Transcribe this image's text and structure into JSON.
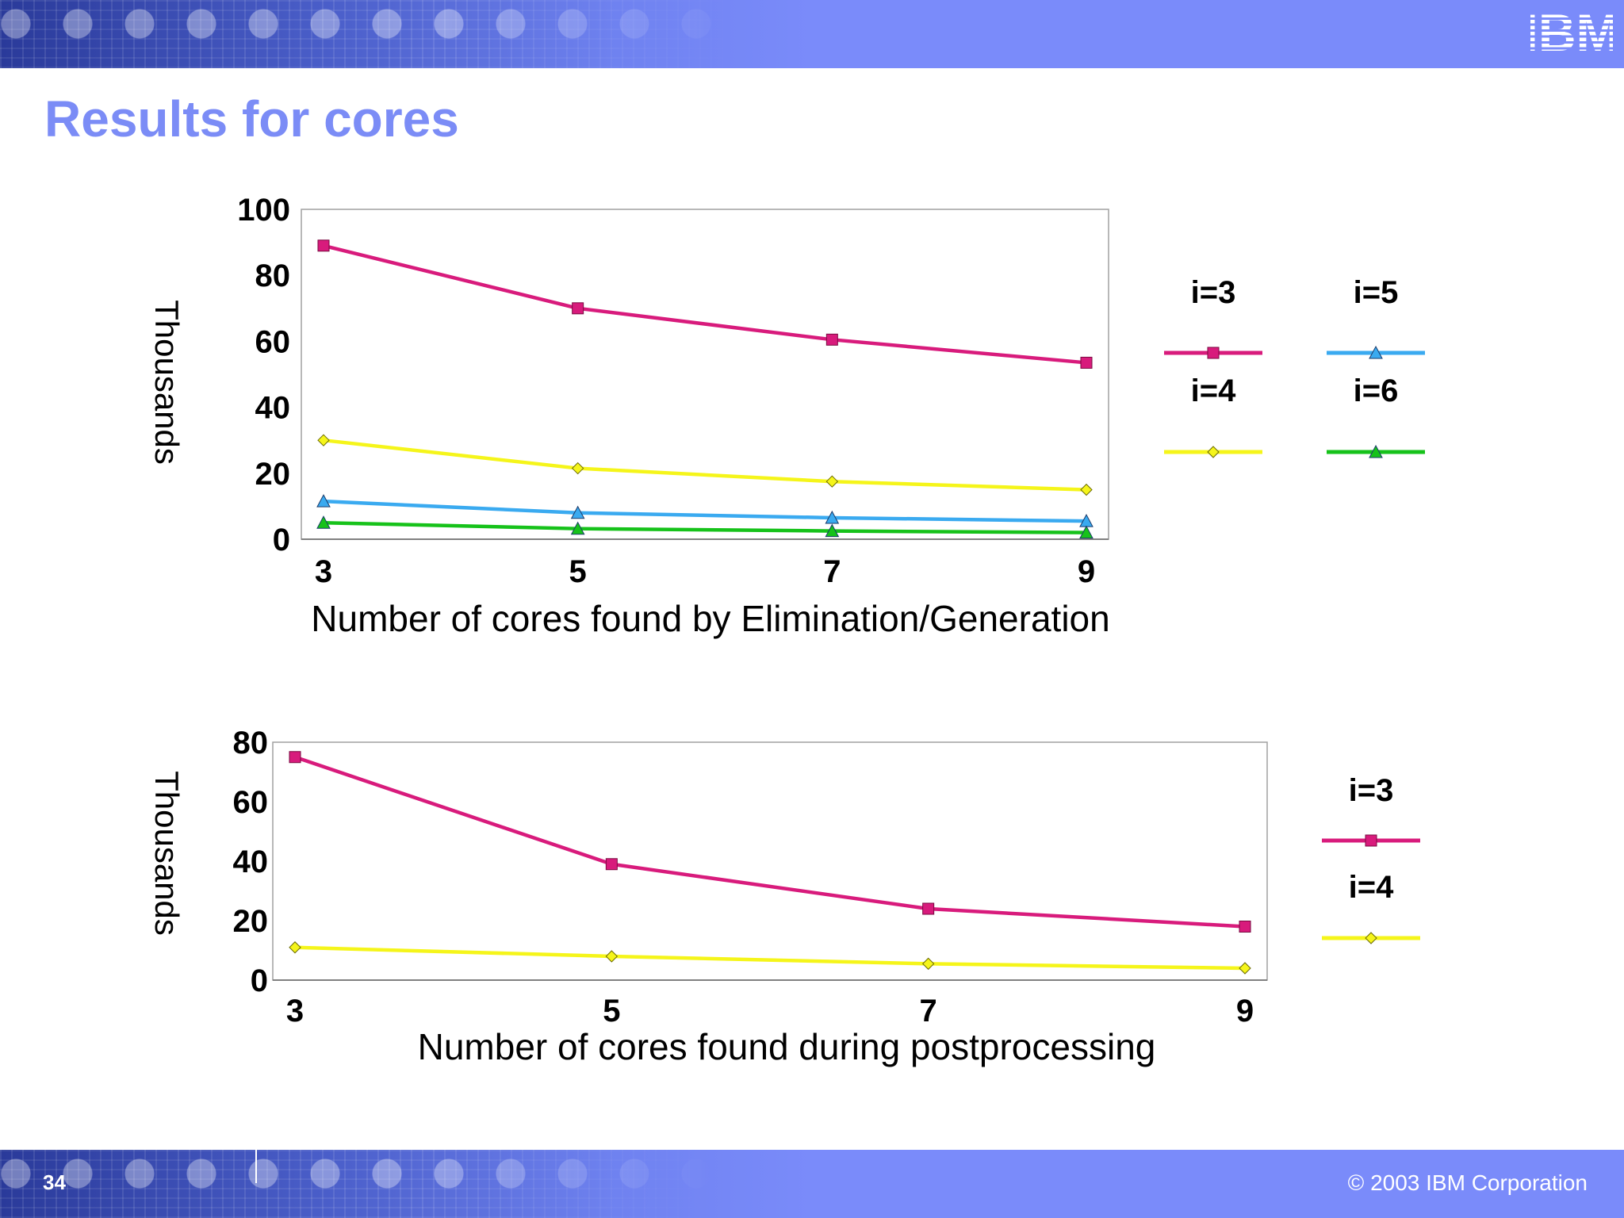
{
  "slide": {
    "title": "Results for cores",
    "page_number": "34",
    "copyright": "© 2003 IBM Corporation",
    "logo_text": "IBM"
  },
  "colors": {
    "banner": "#7a8bfa",
    "title": "#7b8cf6",
    "i3": "#d81b7c",
    "i4": "#f5f51a",
    "i5": "#3aaaf0",
    "i6": "#16c21a"
  },
  "chart_data": [
    {
      "type": "line",
      "title": "",
      "xlabel": "Number of cores found by Elimination/Generation",
      "ylabel": "Thousands",
      "x": [
        3,
        5,
        7,
        9
      ],
      "x_ticks": [
        "3",
        "5",
        "7",
        "9"
      ],
      "y_ticks": [
        "0",
        "20",
        "40",
        "60",
        "80",
        "100"
      ],
      "ylim": [
        0,
        100
      ],
      "grid": false,
      "legend_position": "right",
      "series": [
        {
          "name": "i=3",
          "values": [
            89,
            70,
            60.5,
            53.5
          ],
          "color": "#d81b7c",
          "marker": "square"
        },
        {
          "name": "i=5",
          "values": [
            11.5,
            8,
            6.5,
            5.5
          ],
          "color": "#3aaaf0",
          "marker": "triangle"
        },
        {
          "name": "i=4",
          "values": [
            30,
            21.5,
            17.5,
            15
          ],
          "color": "#f5f51a",
          "marker": "diamond"
        },
        {
          "name": "i=6",
          "values": [
            5,
            3.2,
            2.5,
            2
          ],
          "color": "#16c21a",
          "marker": "triangle"
        }
      ]
    },
    {
      "type": "line",
      "title": "",
      "xlabel": "Number of cores found during postprocessing",
      "ylabel": "Thousands",
      "x": [
        3,
        5,
        7,
        9
      ],
      "x_ticks": [
        "3",
        "5",
        "7",
        "9"
      ],
      "y_ticks": [
        "0",
        "20",
        "40",
        "60",
        "80"
      ],
      "ylim": [
        0,
        80
      ],
      "grid": false,
      "legend_position": "right",
      "series": [
        {
          "name": "i=3",
          "values": [
            75,
            39,
            24,
            18
          ],
          "color": "#d81b7c",
          "marker": "square"
        },
        {
          "name": "i=4",
          "values": [
            11,
            8,
            5.5,
            4
          ],
          "color": "#f5f51a",
          "marker": "diamond"
        }
      ]
    }
  ]
}
